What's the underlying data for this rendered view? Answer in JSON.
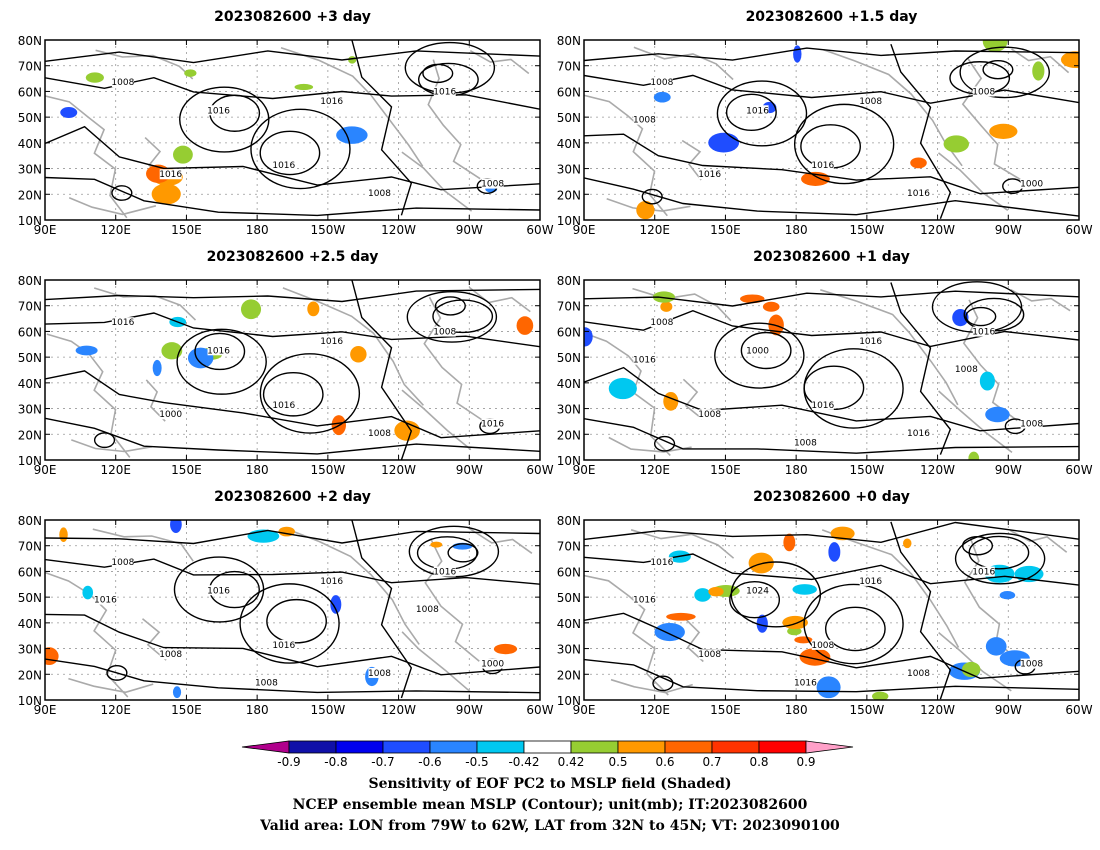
{
  "panels": [
    {
      "title": "2023082600  +3 day",
      "contour_labels": [
        "1008",
        "1016",
        "1016",
        "1016",
        "1016",
        "1008",
        "1016",
        "1008"
      ]
    },
    {
      "title": "2023082600  +1.5 day",
      "contour_labels": [
        "1008",
        "1016",
        "1008",
        "1016",
        "1008",
        "1000",
        "1016",
        "1016",
        "1008"
      ]
    },
    {
      "title": "2023082600  +2.5 day",
      "contour_labels": [
        "1016",
        "1016",
        "1008",
        "1000",
        "1016",
        "1016",
        "1016",
        "1008"
      ]
    },
    {
      "title": "2023082600  +1 day",
      "contour_labels": [
        "1008",
        "1016",
        "1016",
        "1008",
        "1016",
        "1008",
        "1000",
        "1016",
        "1016",
        "1008",
        "1008"
      ]
    },
    {
      "title": "2023082600  +2 day",
      "contour_labels": [
        "1008",
        "1016",
        "1016",
        "1008",
        "1016",
        "1000",
        "1016",
        "1008",
        "1016",
        "1008",
        "1008"
      ]
    },
    {
      "title": "2023082600  +0 day",
      "contour_labels": [
        "1016",
        "1008",
        "1016",
        "1008",
        "1016",
        "1008",
        "1024",
        "1008",
        "1016",
        "1016"
      ]
    }
  ],
  "lon_ticks": [
    "90E",
    "120E",
    "150E",
    "180",
    "150W",
    "120W",
    "90W",
    "60W"
  ],
  "lat_ticks": [
    "80N",
    "70N",
    "60N",
    "50N",
    "40N",
    "30N",
    "20N",
    "10N"
  ],
  "colorbar": {
    "labels": [
      "-0.9",
      "-0.8",
      "-0.7",
      "-0.6",
      "-0.5",
      "-0.42",
      "0.42",
      "0.5",
      "0.6",
      "0.7",
      "0.8",
      "0.9"
    ],
    "colors": [
      "#b0008c",
      "#1010a8",
      "#0000ee",
      "#1f4dff",
      "#2a85ff",
      "#00c8f0",
      "#ffffff",
      "#96cd32",
      "#ff9900",
      "#ff6600",
      "#ff3300",
      "#ff0000",
      "#ffa0c8"
    ]
  },
  "contour_color": "#000000",
  "coast_color": "#aaaaaa",
  "footer": {
    "line1": "Sensitivity of EOF PC2 to MSLP field (Shaded)",
    "line2": "NCEP ensemble mean MSLP (Contour); unit(mb); IT:2023082600",
    "line3": "Valid area: LON from 79W to 62W, LAT from 32N to 45N; VT: 2023090100"
  }
}
